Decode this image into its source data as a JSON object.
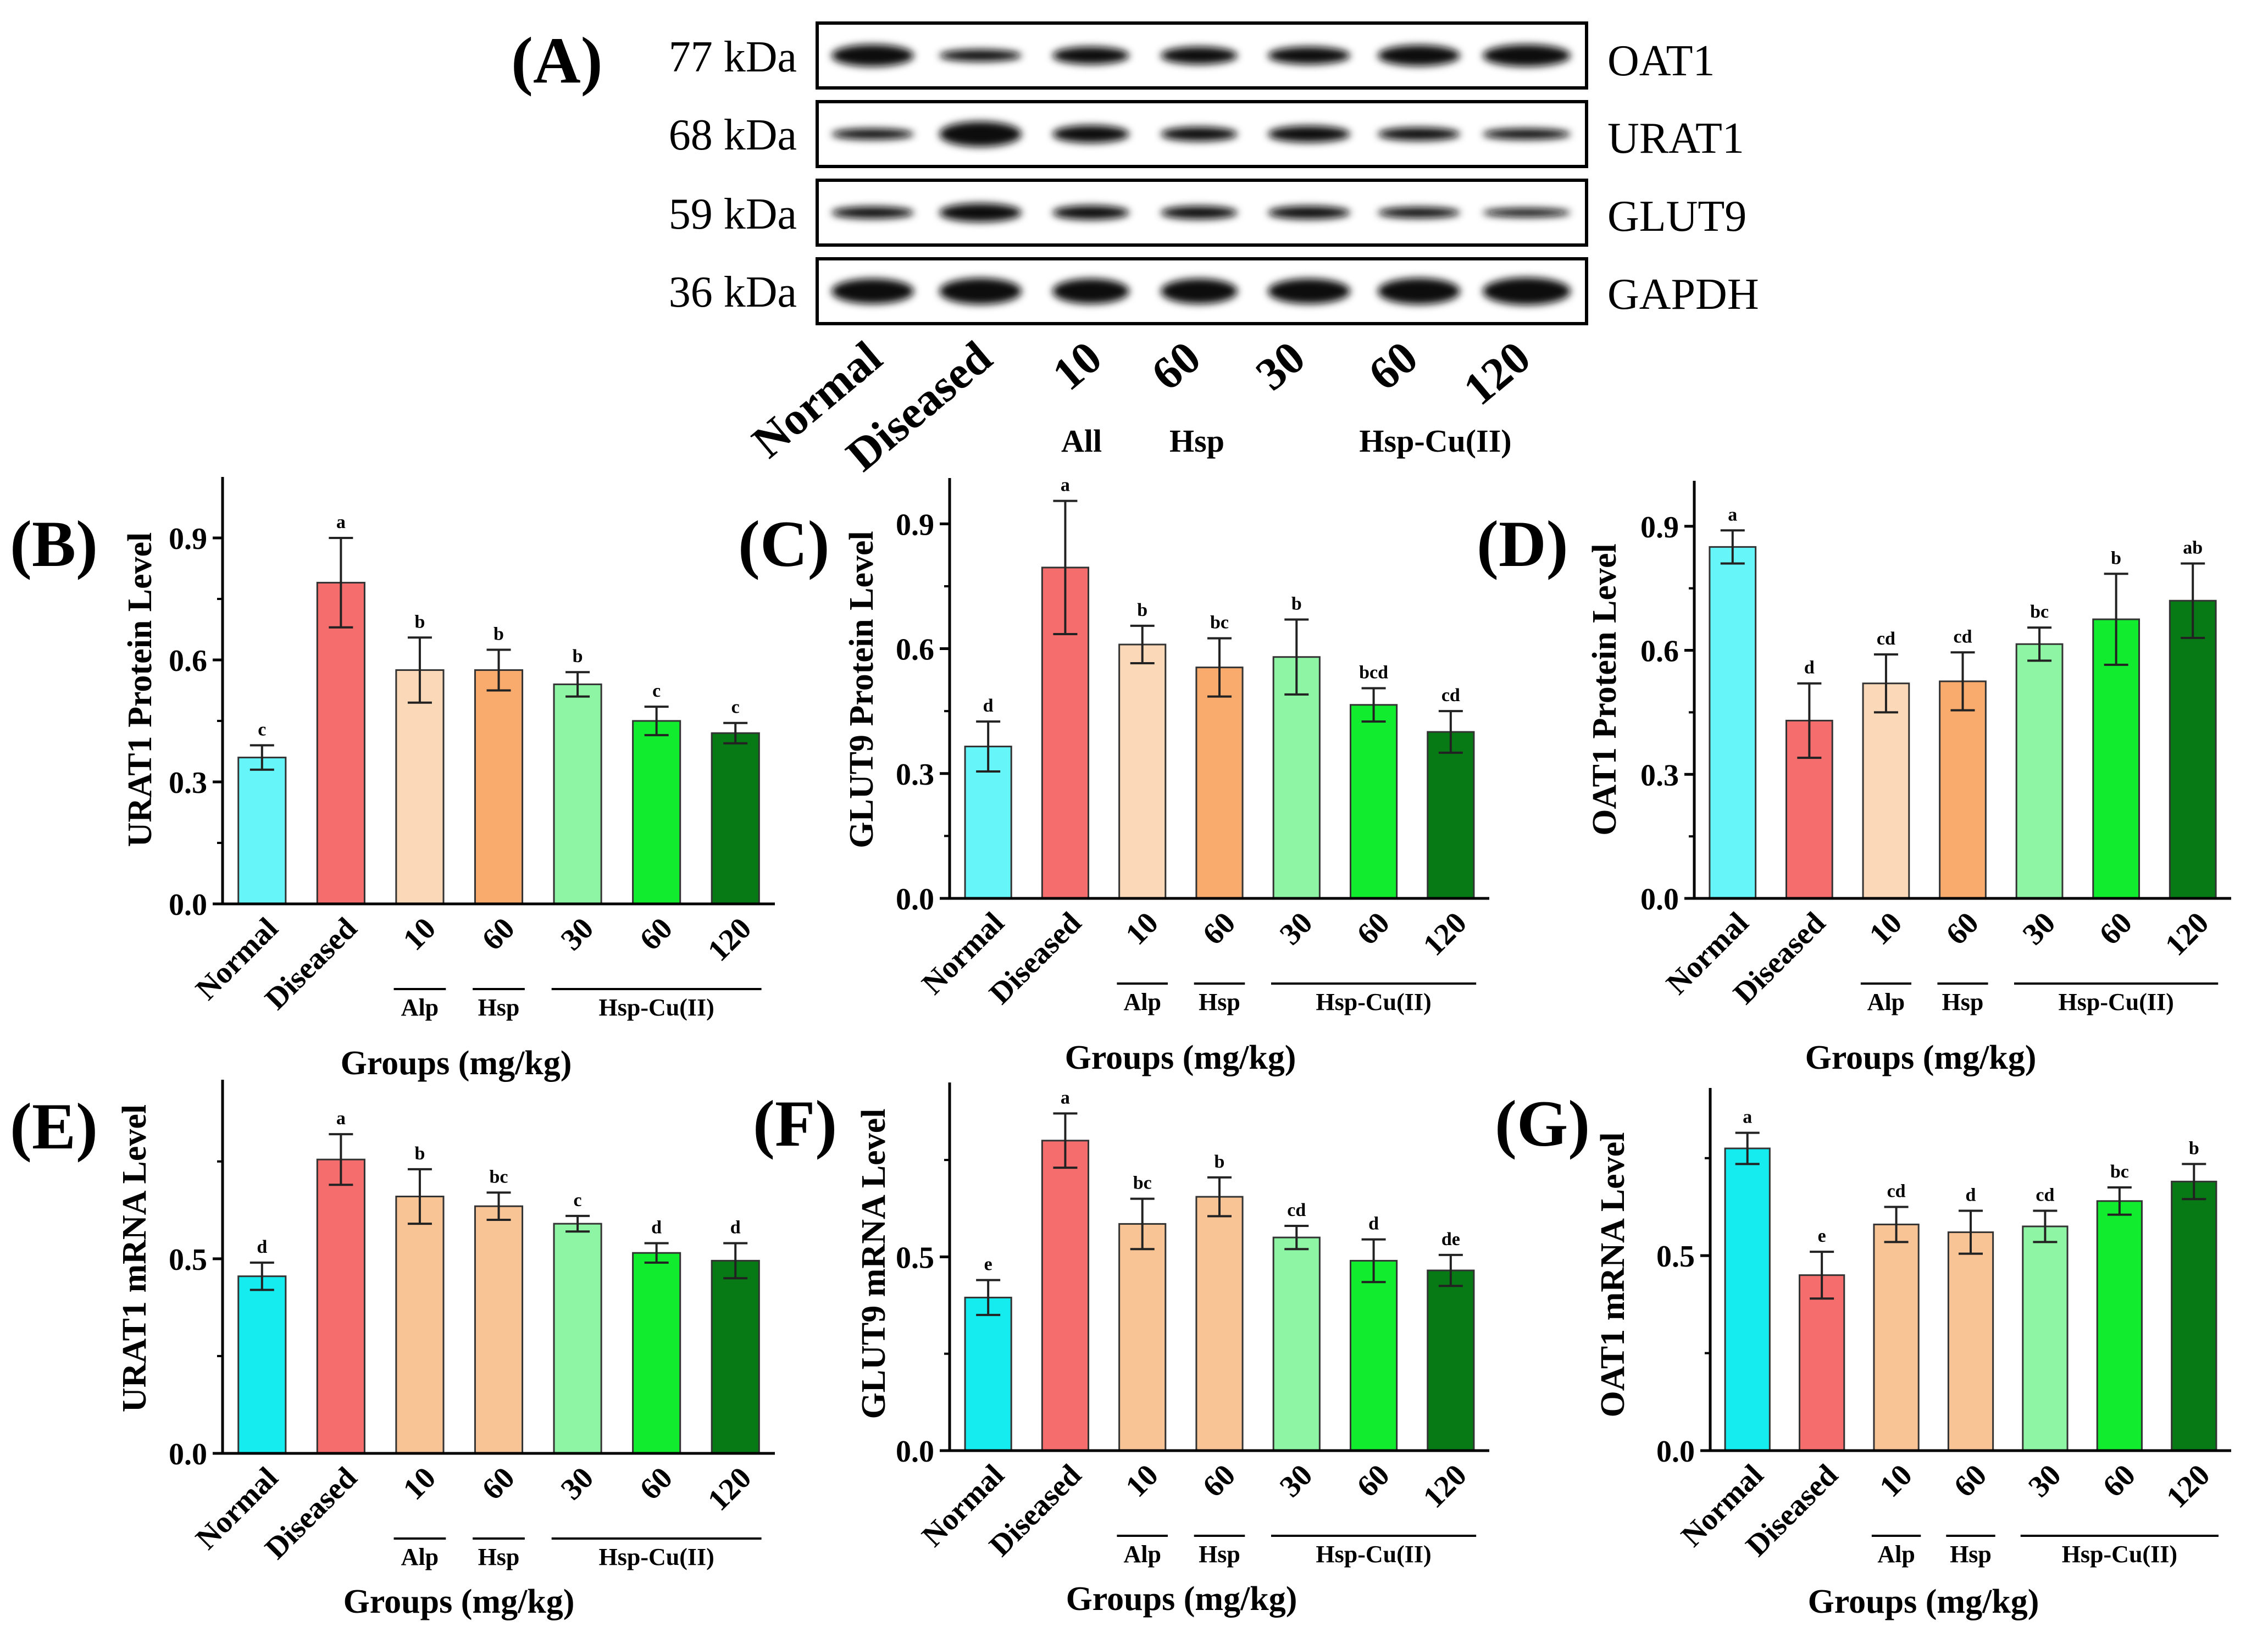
{
  "western_blot": {
    "panel_label": "(A)",
    "rows": [
      {
        "kda": "77 kDa",
        "protein": "OAT1"
      },
      {
        "kda": "68 kDa",
        "protein": "URAT1"
      },
      {
        "kda": "59 kDa",
        "protein": "GLUT9"
      },
      {
        "kda": "36 kDa",
        "protein": "GAPDH"
      }
    ],
    "lanes": [
      "Normal",
      "Diseased",
      "10",
      "60",
      "30",
      "60",
      "120"
    ],
    "groups": [
      "All",
      "Hsp",
      "Hsp-Cu(II)"
    ]
  },
  "colors": [
    "#66f5f8",
    "#f56d6d",
    "#fbd9b8",
    "#f8ab6d",
    "#8ef5a4",
    "#12ec2e",
    "#087a15"
  ],
  "colors_mrna": [
    "#15ecef",
    "#f56d6d",
    "#f9c495",
    "#f9c495",
    "#8ef5a4",
    "#12ec2e",
    "#087a15"
  ],
  "chart_data": [
    {
      "panel": "(B)",
      "type": "bar",
      "ylabel": "URAT1 Protein Level",
      "xlabel": "Groups (mg/kg)",
      "categories": [
        "Normal",
        "Diseased",
        "10",
        "60",
        "30",
        "60",
        "120"
      ],
      "group_labels": [
        "Alp",
        "Hsp",
        "Hsp-Cu(II)"
      ],
      "values": [
        0.36,
        0.79,
        0.575,
        0.575,
        0.54,
        0.45,
        0.42
      ],
      "errors": [
        0.03,
        0.11,
        0.08,
        0.05,
        0.03,
        0.035,
        0.025
      ],
      "letters": [
        "c",
        "a",
        "b",
        "b",
        "b",
        "c",
        "c"
      ],
      "ylim": [
        0,
        1.05
      ],
      "yticks": [
        "0.0",
        "0.3",
        "0.6",
        "0.9"
      ],
      "ytick_values": [
        0,
        0.3,
        0.6,
        0.9
      ]
    },
    {
      "panel": "(C)",
      "type": "bar",
      "ylabel": "GLUT9 Protein Level",
      "xlabel": "Groups (mg/kg)",
      "categories": [
        "Normal",
        "Diseased",
        "10",
        "60",
        "30",
        "60",
        "120"
      ],
      "group_labels": [
        "Alp",
        "Hsp",
        "Hsp-Cu(II)"
      ],
      "values": [
        0.365,
        0.795,
        0.61,
        0.555,
        0.58,
        0.465,
        0.4
      ],
      "errors": [
        0.06,
        0.16,
        0.045,
        0.07,
        0.09,
        0.04,
        0.05
      ],
      "letters": [
        "d",
        "a",
        "b",
        "bc",
        "b",
        "bcd",
        "cd"
      ],
      "ylim": [
        0,
        1.01
      ],
      "yticks": [
        "0.0",
        "0.3",
        "0.6",
        "0.9"
      ],
      "ytick_values": [
        0,
        0.3,
        0.6,
        0.9
      ]
    },
    {
      "panel": "(D)",
      "type": "bar",
      "ylabel": "OAT1 Protein Level",
      "xlabel": "Groups (mg/kg)",
      "categories": [
        "Normal",
        "Diseased",
        "10",
        "60",
        "30",
        "60",
        "120"
      ],
      "group_labels": [
        "Alp",
        "Hsp",
        "Hsp-Cu(II)"
      ],
      "values": [
        0.85,
        0.43,
        0.52,
        0.525,
        0.615,
        0.675,
        0.72
      ],
      "errors": [
        0.04,
        0.09,
        0.07,
        0.07,
        0.04,
        0.11,
        0.09
      ],
      "letters": [
        "a",
        "d",
        "cd",
        "cd",
        "bc",
        "b",
        "ab"
      ],
      "ylim": [
        0,
        1.01
      ],
      "yticks": [
        "0.0",
        "0.3",
        "0.6",
        "0.9"
      ],
      "ytick_values": [
        0,
        0.3,
        0.6,
        0.9
      ]
    },
    {
      "panel": "(E)",
      "type": "bar",
      "ylabel": "URAT1 mRNA Level",
      "xlabel": "Groups (mg/kg)",
      "categories": [
        "Normal",
        "Diseased",
        "10",
        "60",
        "30",
        "60",
        "120"
      ],
      "group_labels": [
        "Alp",
        "Hsp",
        "Hsp-Cu(II)"
      ],
      "values": [
        0.455,
        0.755,
        0.66,
        0.635,
        0.59,
        0.515,
        0.495
      ],
      "errors": [
        0.035,
        0.065,
        0.07,
        0.035,
        0.02,
        0.025,
        0.045
      ],
      "letters": [
        "d",
        "a",
        "b",
        "bc",
        "c",
        "d",
        "d"
      ],
      "ylim": [
        0,
        0.96
      ],
      "yticks": [
        "0.0",
        "0.5"
      ],
      "ytick_values": [
        0,
        0.5
      ]
    },
    {
      "panel": "(F)",
      "type": "bar",
      "ylabel": "GLUT9 mRNA Level",
      "xlabel": "Groups (mg/kg)",
      "categories": [
        "Normal",
        "Diseased",
        "10",
        "60",
        "30",
        "60",
        "120"
      ],
      "group_labels": [
        "Alp",
        "Hsp",
        "Hsp-Cu(II)"
      ],
      "values": [
        0.395,
        0.8,
        0.585,
        0.655,
        0.55,
        0.49,
        0.465
      ],
      "errors": [
        0.045,
        0.07,
        0.065,
        0.05,
        0.03,
        0.055,
        0.04
      ],
      "letters": [
        "e",
        "a",
        "bc",
        "b",
        "cd",
        "d",
        "de"
      ],
      "ylim": [
        0,
        0.95
      ],
      "yticks": [
        "0.0",
        "0.5"
      ],
      "ytick_values": [
        0,
        0.5
      ]
    },
    {
      "panel": "(G)",
      "type": "bar",
      "ylabel": "OAT1 mRNA Level",
      "xlabel": "Groups (mg/kg)",
      "categories": [
        "Normal",
        "Diseased",
        "10",
        "60",
        "30",
        "60",
        "120"
      ],
      "group_labels": [
        "Alp",
        "Hsp",
        "Hsp-Cu(II)"
      ],
      "values": [
        0.775,
        0.45,
        0.58,
        0.56,
        0.575,
        0.64,
        0.69
      ],
      "errors": [
        0.04,
        0.06,
        0.045,
        0.055,
        0.04,
        0.035,
        0.045
      ],
      "letters": [
        "a",
        "e",
        "cd",
        "d",
        "cd",
        "bc",
        "b"
      ],
      "ylim": [
        0,
        0.93
      ],
      "yticks": [
        "0.0",
        "0.5"
      ],
      "ytick_values": [
        0,
        0.5
      ]
    }
  ]
}
